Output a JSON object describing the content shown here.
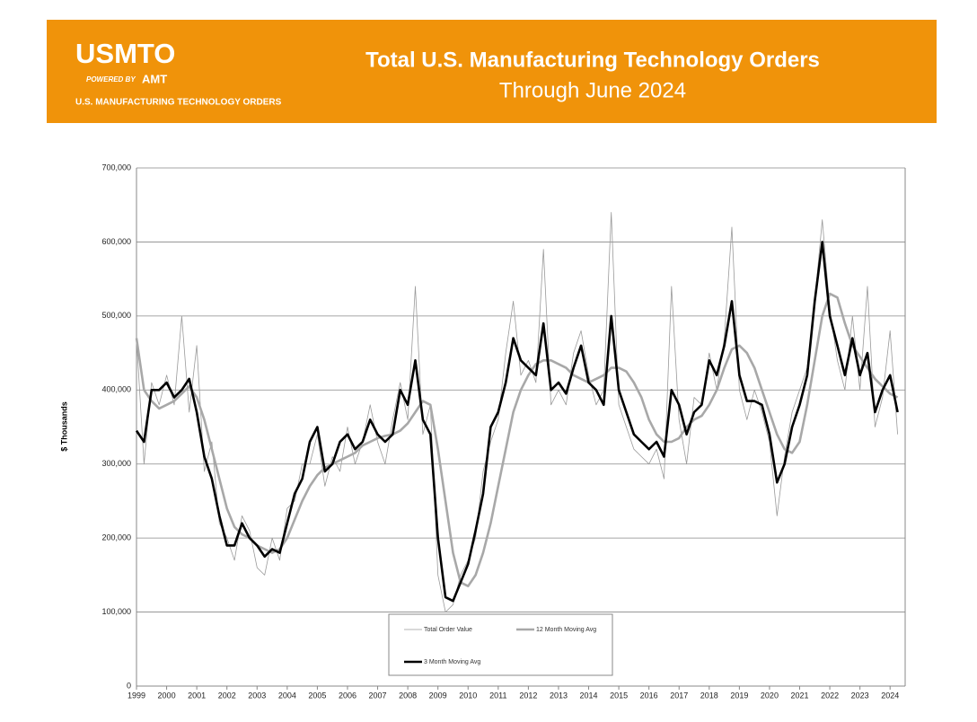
{
  "header": {
    "logo": "USMTO",
    "powered_by": "POWERED BY",
    "amt": "AMT",
    "tagline": "U.S. MANUFACTURING TECHNOLOGY ORDERS"
  },
  "chart_data": {
    "type": "line",
    "title": "Total U.S. Manufacturing Technology Orders",
    "subtitle": "Through June 2024",
    "ylabel": "$ Thousands",
    "xlim": [
      1999,
      2024.5
    ],
    "xticks": [
      1999,
      2000,
      2001,
      2002,
      2003,
      2004,
      2005,
      2006,
      2007,
      2008,
      2009,
      2010,
      2011,
      2012,
      2013,
      2014,
      2015,
      2016,
      2017,
      2018,
      2019,
      2020,
      2021,
      2022,
      2023,
      2024
    ],
    "ylim": [
      0,
      700000
    ],
    "yticks": [
      0,
      {
        "value": 100000,
        "label": "100,000"
      },
      {
        "value": 200000,
        "label": "200,000"
      },
      {
        "value": 300000,
        "label": "300,000"
      },
      {
        "value": 400000,
        "label": "400,000"
      },
      {
        "value": 500000,
        "label": "500,000"
      },
      {
        "value": 600000,
        "label": "600,000"
      },
      {
        "value": 700000,
        "label": "700,000"
      }
    ],
    "grid": true,
    "x": [
      1999,
      1999.25,
      1999.5,
      1999.75,
      2000,
      2000.25,
      2000.5,
      2000.75,
      2001,
      2001.25,
      2001.5,
      2001.75,
      2002,
      2002.25,
      2002.5,
      2002.75,
      2003,
      2003.25,
      2003.5,
      2003.75,
      2004,
      2004.25,
      2004.5,
      2004.75,
      2005,
      2005.25,
      2005.5,
      2005.75,
      2006,
      2006.25,
      2006.5,
      2006.75,
      2007,
      2007.25,
      2007.5,
      2007.75,
      2008,
      2008.25,
      2008.5,
      2008.75,
      2009,
      2009.25,
      2009.5,
      2009.75,
      2010,
      2010.25,
      2010.5,
      2010.75,
      2011,
      2011.25,
      2011.5,
      2011.75,
      2012,
      2012.25,
      2012.5,
      2012.75,
      2013,
      2013.25,
      2013.5,
      2013.75,
      2014,
      2014.25,
      2014.5,
      2014.75,
      2015,
      2015.25,
      2015.5,
      2015.75,
      2016,
      2016.25,
      2016.5,
      2016.75,
      2017,
      2017.25,
      2017.5,
      2017.75,
      2018,
      2018.25,
      2018.5,
      2018.75,
      2019,
      2019.25,
      2019.5,
      2019.75,
      2020,
      2020.25,
      2020.5,
      2020.75,
      2021,
      2021.25,
      2021.5,
      2021.75,
      2022,
      2022.25,
      2022.5,
      2022.75,
      2023,
      2023.25,
      2023.5,
      2023.75,
      2024,
      2024.25
    ],
    "series": [
      {
        "name": "Total Order Value",
        "color": "#9a9a9a",
        "values": [
          470000,
          300000,
          410000,
          380000,
          420000,
          380000,
          500000,
          370000,
          460000,
          290000,
          330000,
          220000,
          200000,
          170000,
          230000,
          210000,
          160000,
          150000,
          200000,
          170000,
          240000,
          250000,
          300000,
          300000,
          340000,
          270000,
          310000,
          290000,
          350000,
          300000,
          330000,
          380000,
          330000,
          300000,
          360000,
          410000,
          360000,
          540000,
          340000,
          380000,
          150000,
          100000,
          110000,
          150000,
          170000,
          200000,
          290000,
          330000,
          360000,
          450000,
          520000,
          420000,
          440000,
          410000,
          590000,
          380000,
          400000,
          380000,
          450000,
          480000,
          420000,
          380000,
          400000,
          640000,
          380000,
          350000,
          320000,
          310000,
          300000,
          320000,
          280000,
          540000,
          360000,
          300000,
          390000,
          380000,
          450000,
          400000,
          470000,
          620000,
          400000,
          360000,
          400000,
          370000,
          330000,
          230000,
          310000,
          370000,
          400000,
          430000,
          520000,
          630000,
          510000,
          440000,
          400000,
          500000,
          400000,
          540000,
          350000,
          390000,
          480000,
          340000
        ]
      },
      {
        "name": "12 Month Moving Avg",
        "color": "#a8a8a8",
        "values": [
          470000,
          400000,
          385000,
          375000,
          380000,
          385000,
          395000,
          405000,
          390000,
          360000,
          320000,
          280000,
          240000,
          215000,
          205000,
          200000,
          190000,
          185000,
          180000,
          185000,
          200000,
          225000,
          250000,
          270000,
          285000,
          295000,
          300000,
          305000,
          310000,
          315000,
          325000,
          330000,
          335000,
          338000,
          340000,
          345000,
          355000,
          370000,
          385000,
          380000,
          320000,
          250000,
          180000,
          140000,
          135000,
          150000,
          180000,
          220000,
          270000,
          320000,
          370000,
          400000,
          420000,
          435000,
          440000,
          440000,
          435000,
          430000,
          420000,
          415000,
          410000,
          415000,
          420000,
          430000,
          430000,
          425000,
          410000,
          390000,
          360000,
          340000,
          330000,
          330000,
          335000,
          350000,
          360000,
          365000,
          380000,
          400000,
          430000,
          455000,
          460000,
          450000,
          430000,
          400000,
          370000,
          340000,
          320000,
          315000,
          330000,
          380000,
          440000,
          500000,
          530000,
          525000,
          490000,
          460000,
          445000,
          430000,
          415000,
          405000,
          395000,
          390000
        ]
      },
      {
        "name": "3 Month Moving Avg",
        "color": "#000000",
        "values": [
          345000,
          330000,
          400000,
          400000,
          410000,
          390000,
          400000,
          415000,
          370000,
          310000,
          280000,
          230000,
          190000,
          190000,
          220000,
          200000,
          190000,
          175000,
          185000,
          180000,
          220000,
          260000,
          280000,
          330000,
          350000,
          290000,
          300000,
          330000,
          340000,
          320000,
          330000,
          360000,
          340000,
          330000,
          340000,
          400000,
          380000,
          440000,
          360000,
          340000,
          200000,
          120000,
          115000,
          140000,
          165000,
          210000,
          260000,
          350000,
          370000,
          410000,
          470000,
          440000,
          430000,
          420000,
          490000,
          400000,
          410000,
          395000,
          430000,
          460000,
          410000,
          400000,
          380000,
          500000,
          400000,
          370000,
          340000,
          330000,
          320000,
          330000,
          310000,
          400000,
          380000,
          340000,
          370000,
          380000,
          440000,
          420000,
          460000,
          520000,
          420000,
          385000,
          385000,
          380000,
          340000,
          275000,
          300000,
          350000,
          380000,
          420000,
          520000,
          600000,
          500000,
          460000,
          420000,
          470000,
          420000,
          450000,
          370000,
          400000,
          420000,
          370000
        ]
      }
    ]
  }
}
